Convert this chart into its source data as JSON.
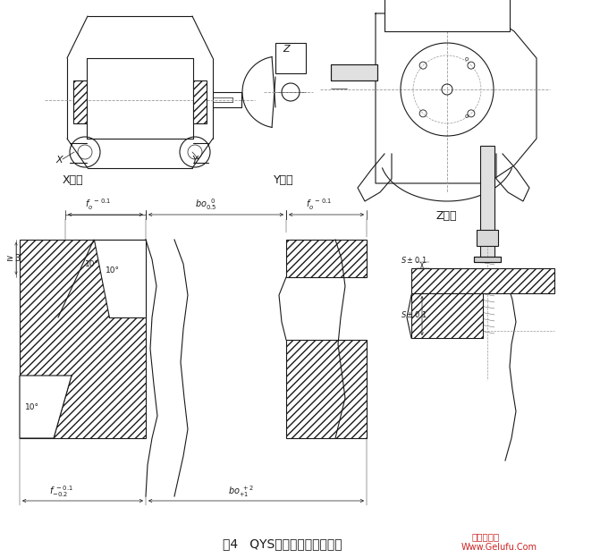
{
  "title": "图4   QYS型减速器的支承型式",
  "bg_color": "#ffffff",
  "line_color": "#1a1a1a",
  "watermark1": "格鲁夫机械",
  "watermark2": "Www.Gelufu.Com"
}
